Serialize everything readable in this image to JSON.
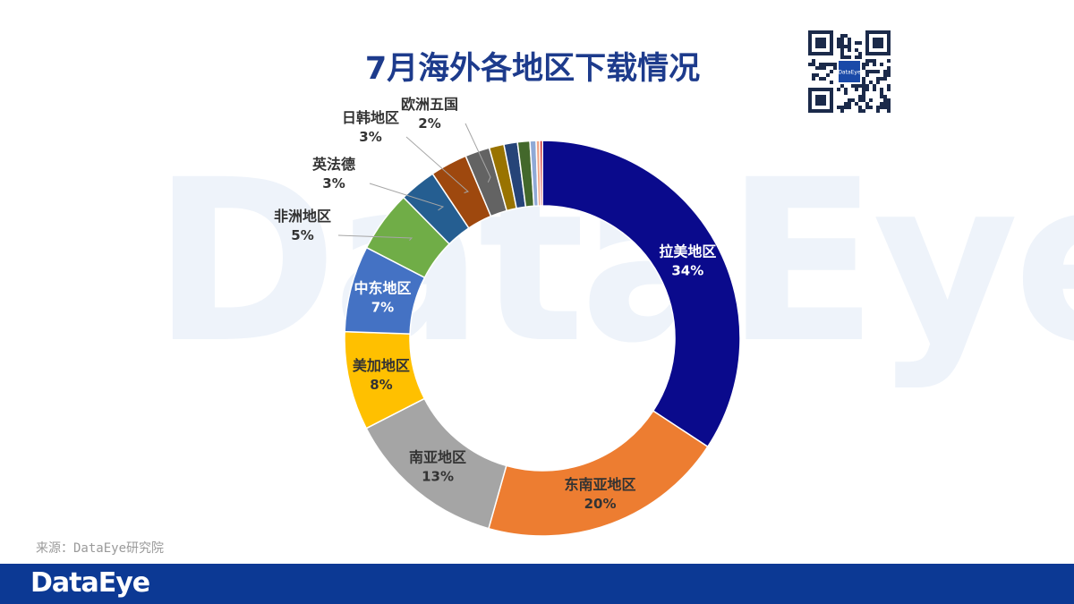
{
  "watermark_text": "DataEye",
  "qr_center_text": "DataEye",
  "source_note": "来源：DataEye研究院",
  "footer_logo": "DataEye",
  "chart_data": {
    "type": "pie",
    "donut": true,
    "title": "7月海外各地区下载情况",
    "categories": [
      "拉美地区",
      "东南亚地区",
      "南亚地区",
      "美加地区",
      "中东地区",
      "非洲地区",
      "英法德",
      "日韩地区",
      "欧洲五国",
      "",
      "",
      "",
      "",
      "",
      ""
    ],
    "labels": [
      "34%",
      "20%",
      "13%",
      "8%",
      "7%",
      "5%",
      "3%",
      "3%",
      "2%",
      "",
      "",
      "",
      "",
      "",
      ""
    ],
    "values": [
      34,
      20,
      13,
      8,
      7,
      5,
      3,
      3,
      2,
      1.2,
      1.1,
      1.0,
      0.5,
      0.3,
      0.2
    ],
    "colors": [
      "#0a0a8c",
      "#ed7d31",
      "#a5a5a5",
      "#ffc000",
      "#4472c4",
      "#70ad47",
      "#255e91",
      "#9e480e",
      "#636363",
      "#997300",
      "#264478",
      "#43682b",
      "#8fa9d6",
      "#f1a78a",
      "#c00000"
    ]
  }
}
